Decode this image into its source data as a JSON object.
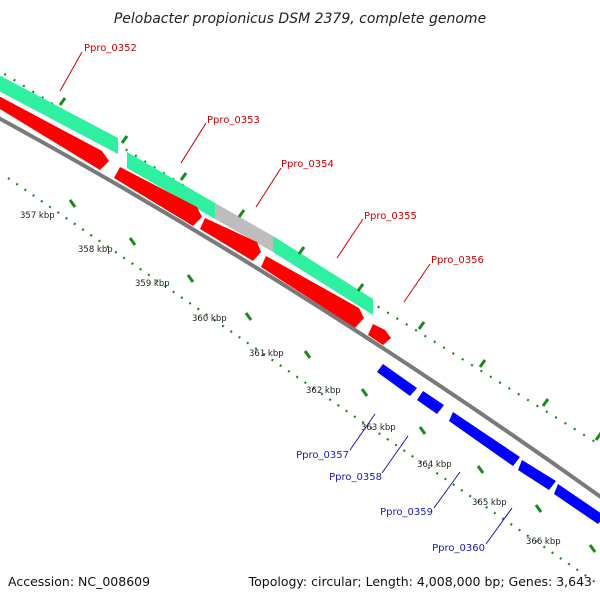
{
  "title": "Pelobacter propionicus DSM 2379, complete genome",
  "footer": {
    "accession": "Accession: NC_008609",
    "topology": "Topology: circular; Length: 4,008,000 bp; Genes: 3,643"
  },
  "colors": {
    "forward_gene": "#ff0000",
    "reverse_gene": "#0000ff",
    "cds_feature": "#2ef0a0",
    "gap_feature": "#bdbdbd",
    "backbone": "#7a7a7a",
    "tick": "#1a8a1a",
    "forward_label": "#cc0000",
    "reverse_label": "#1a1aaa"
  },
  "ruler": {
    "kbp_labels": [
      "357 kbp",
      "358 kbp",
      "359 kbp",
      "360 kbp",
      "361 kbp",
      "362 kbp",
      "363 kbp",
      "364 kbp",
      "365 kbp",
      "366 kbp"
    ]
  },
  "genes_forward": [
    {
      "name": "Ppro_0352"
    },
    {
      "name": "Ppro_0353"
    },
    {
      "name": "Ppro_0354"
    },
    {
      "name": "Ppro_0355"
    },
    {
      "name": "Ppro_0356"
    }
  ],
  "genes_reverse": [
    {
      "name": "Ppro_0357"
    },
    {
      "name": "Ppro_0358"
    },
    {
      "name": "Ppro_0359"
    },
    {
      "name": "Ppro_0360"
    }
  ]
}
